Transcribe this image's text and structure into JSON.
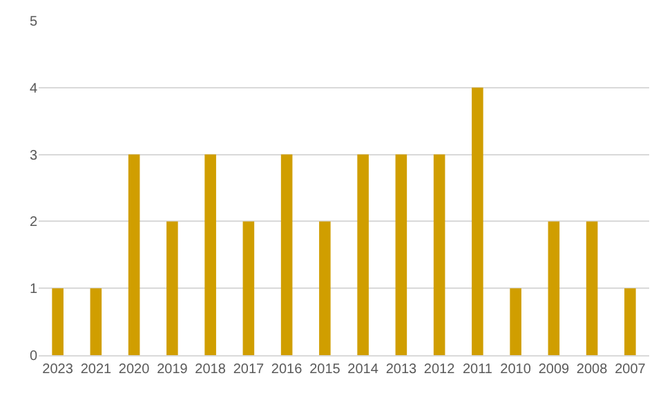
{
  "chart_data": {
    "type": "bar",
    "categories": [
      "2023",
      "2021",
      "2020",
      "2019",
      "2018",
      "2017",
      "2016",
      "2015",
      "2014",
      "2013",
      "2012",
      "2011",
      "2010",
      "2009",
      "2008",
      "2007"
    ],
    "values": [
      1,
      1,
      3,
      2,
      3,
      2,
      3,
      2,
      3,
      3,
      3,
      4,
      1,
      2,
      2,
      1
    ],
    "color": "#d09e00",
    "ylim": [
      0,
      5
    ],
    "yticks": [
      0,
      1,
      2,
      3,
      4,
      5
    ],
    "grid": "y"
  }
}
